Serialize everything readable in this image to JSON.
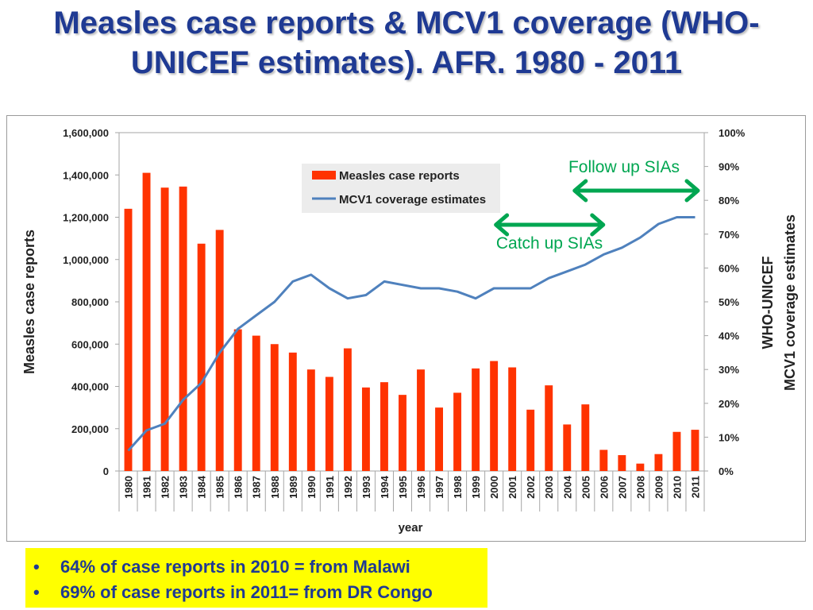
{
  "title": {
    "line1": "Measles case reports & MCV1 coverage (WHO-",
    "line2": "UNICEF estimates). AFR. 1980 - 2011"
  },
  "chart_data": {
    "type": "bar",
    "categories": [
      "1980",
      "1981",
      "1982",
      "1983",
      "1984",
      "1985",
      "1986",
      "1987",
      "1988",
      "1989",
      "1990",
      "1991",
      "1992",
      "1993",
      "1994",
      "1995",
      "1996",
      "1997",
      "1998",
      "1999",
      "2000",
      "2001",
      "2002",
      "2003",
      "2004",
      "2005",
      "2006",
      "2007",
      "2008",
      "2009",
      "2010",
      "2011"
    ],
    "xlabel": "year",
    "ylabel": "Measles case reports",
    "y2label_line1": "WHO-UNICEF",
    "y2label_line2": "MCV1 coverage estimates",
    "ylim": [
      0,
      1600000
    ],
    "y2lim": [
      0,
      100
    ],
    "yticks": [
      "0",
      "200,000",
      "400,000",
      "600,000",
      "800,000",
      "1,000,000",
      "1,200,000",
      "1,400,000",
      "1,600,000"
    ],
    "y2ticks": [
      "0%",
      "10%",
      "20%",
      "30%",
      "40%",
      "50%",
      "60%",
      "70%",
      "80%",
      "90%",
      "100%"
    ],
    "legend_position": "top-center",
    "series": [
      {
        "name": "Measles case reports",
        "type": "bar",
        "axis": "left",
        "color": "#ff3300",
        "values": [
          1240000,
          1410000,
          1340000,
          1345000,
          1075000,
          1140000,
          670000,
          640000,
          600000,
          560000,
          480000,
          445000,
          580000,
          395000,
          420000,
          360000,
          480000,
          300000,
          370000,
          485000,
          520000,
          490000,
          290000,
          405000,
          220000,
          315000,
          100000,
          75000,
          35000,
          80000,
          185000,
          195000
        ]
      },
      {
        "name": "MCV1 coverage estimates",
        "type": "line",
        "axis": "right",
        "color": "#4f81bd",
        "values": [
          6,
          12,
          14,
          21,
          26,
          35,
          42,
          46,
          50,
          56,
          58,
          54,
          51,
          52,
          56,
          55,
          54,
          54,
          53,
          51,
          54,
          54,
          54,
          57,
          59,
          61,
          64,
          66,
          69,
          73,
          75,
          75
        ]
      }
    ],
    "annotations": {
      "follow_up": {
        "label": "Follow up SIAs",
        "from": 2004.5,
        "to": 2011.5
      },
      "catch_up": {
        "label": "Catch up  SIAs",
        "from": 1999.5,
        "to": 2004.5
      }
    }
  },
  "notes": [
    "64% of case reports in 2010 = from Malawi",
    "69% of case reports in 2011= from DR Congo"
  ],
  "colors": {
    "title": "#1f3a93",
    "annotation": "#00a651",
    "legend_bg": "#ececec",
    "notes_bg": "#ffff00"
  }
}
